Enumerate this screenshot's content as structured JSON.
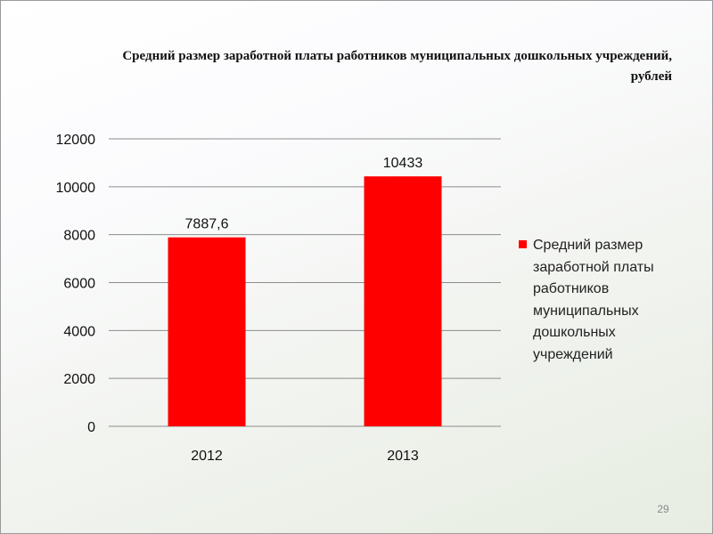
{
  "slide": {
    "title_line1": "Средний размер заработной платы работников муниципальных дошкольных учреждений,",
    "title_line2": "рублей",
    "page_number": "29"
  },
  "chart_data": {
    "type": "bar",
    "categories": [
      "2012",
      "2013"
    ],
    "series": [
      {
        "name": "Средний размер заработной платы работников муниципальных дошкольных учреждений",
        "values": [
          7887.6,
          10433
        ],
        "data_labels": [
          "7887,6",
          "10433"
        ],
        "color": "#ff0000"
      }
    ],
    "ylim": [
      0,
      12000
    ],
    "yticks": [
      0,
      2000,
      4000,
      6000,
      8000,
      10000,
      12000
    ],
    "grid": true,
    "legend_position": "right"
  },
  "legend": {
    "text": "Средний размер заработной платы работников муниципальных дошкольных учреждений"
  }
}
